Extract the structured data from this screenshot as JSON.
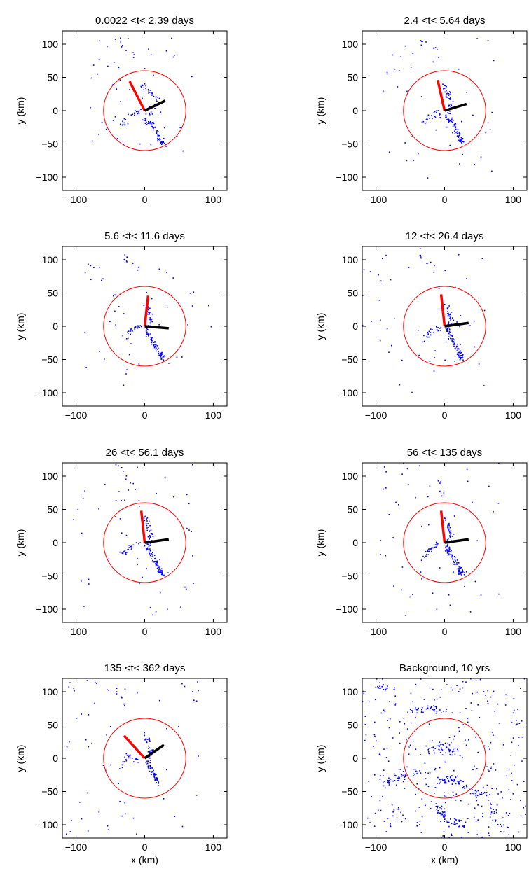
{
  "figure": {
    "shared_xlabel": "x (km)",
    "shared_ylabel": "y (km)"
  },
  "chart_data": [
    {
      "type": "scatter",
      "title": "0.0022 <t< 2.39 days",
      "xlabel": "",
      "ylabel": "y (km)",
      "xlim": [
        -120,
        120
      ],
      "ylim": [
        -120,
        120
      ],
      "xticks": [
        -100,
        0,
        100
      ],
      "yticks": [
        -100,
        -50,
        0,
        50,
        100
      ],
      "circle": {
        "cx": 0,
        "cy": 0,
        "r": 60,
        "color": "#ff0000"
      },
      "red_line": [
        [
          0,
          0
        ],
        [
          -22,
          44
        ]
      ],
      "black_line": [
        [
          0,
          0
        ],
        [
          30,
          15
        ]
      ],
      "clusters": [
        {
          "pts": [
            [
              -5,
              38
            ],
            [
              20,
              18
            ],
            [
              0,
              -15
            ],
            [
              12,
              -22
            ],
            [
              22,
              -42
            ],
            [
              28,
              -50
            ]
          ],
          "spread": 3.5,
          "n": 22
        },
        {
          "pts": [
            [
              -32,
              -22
            ],
            [
              -20,
              -8
            ],
            [
              -6,
              0
            ]
          ],
          "spread": 4,
          "n": 12
        },
        {
          "pts": [
            [
              -40,
              112
            ],
            [
              -30,
              92
            ],
            [
              -15,
              82
            ]
          ],
          "spread": 3,
          "n": 4
        }
      ],
      "scatter_n": 45,
      "scatter_box": [
        -80,
        80,
        -80,
        110
      ]
    },
    {
      "type": "scatter",
      "title": "2.4 <t< 5.64 days",
      "xlabel": "",
      "ylabel": "y (km)",
      "xlim": [
        -120,
        120
      ],
      "ylim": [
        -120,
        120
      ],
      "xticks": [
        -100,
        0,
        100
      ],
      "yticks": [
        -100,
        -50,
        0,
        50,
        100
      ],
      "circle": {
        "cx": 0,
        "cy": 0,
        "r": 60,
        "color": "#ff0000"
      },
      "red_line": [
        [
          0,
          0
        ],
        [
          -10,
          46
        ]
      ],
      "black_line": [
        [
          0,
          0
        ],
        [
          32,
          10
        ]
      ],
      "clusters": [
        {
          "pts": [
            [
              -2,
              38
            ],
            [
              10,
              15
            ],
            [
              4,
              -10
            ],
            [
              14,
              -22
            ],
            [
              22,
              -42
            ],
            [
              26,
              -48
            ]
          ],
          "spread": 3.5,
          "n": 22
        },
        {
          "pts": [
            [
              -32,
              -20
            ],
            [
              -22,
              -10
            ],
            [
              -8,
              -2
            ]
          ],
          "spread": 4,
          "n": 12
        },
        {
          "pts": [
            [
              -35,
              108
            ],
            [
              -25,
              98
            ],
            [
              -8,
              90
            ]
          ],
          "spread": 3,
          "n": 4
        }
      ],
      "scatter_n": 45,
      "scatter_box": [
        -100,
        80,
        -110,
        110
      ]
    },
    {
      "type": "scatter",
      "title": "5.6 <t< 11.6 days",
      "xlabel": "",
      "ylabel": "y (km)",
      "xlim": [
        -120,
        120
      ],
      "ylim": [
        -120,
        120
      ],
      "xticks": [
        -100,
        0,
        100
      ],
      "yticks": [
        -100,
        -50,
        0,
        50,
        100
      ],
      "circle": {
        "cx": 0,
        "cy": 0,
        "r": 60,
        "color": "#ff0000"
      },
      "red_line": [
        [
          0,
          0
        ],
        [
          5,
          46
        ]
      ],
      "black_line": [
        [
          0,
          0
        ],
        [
          35,
          -3
        ]
      ],
      "clusters": [
        {
          "pts": [
            [
              0,
              35
            ],
            [
              10,
              12
            ],
            [
              4,
              -10
            ],
            [
              14,
              -25
            ],
            [
              22,
              -42
            ],
            [
              26,
              -48
            ]
          ],
          "spread": 3.5,
          "n": 22
        },
        {
          "pts": [
            [
              -30,
              -18
            ],
            [
              -20,
              -5
            ],
            [
              -8,
              0
            ]
          ],
          "spread": 4,
          "n": 12
        },
        {
          "pts": [
            [
              -30,
              110
            ],
            [
              -25,
              98
            ],
            [
              -10,
              90
            ]
          ],
          "spread": 3,
          "n": 4
        }
      ],
      "scatter_n": 45,
      "scatter_box": [
        -90,
        100,
        -90,
        110
      ]
    },
    {
      "type": "scatter",
      "title": "12 <t< 26.4 days",
      "xlabel": "",
      "ylabel": "y (km)",
      "xlim": [
        -120,
        120
      ],
      "ylim": [
        -120,
        120
      ],
      "xticks": [
        -100,
        0,
        100
      ],
      "yticks": [
        -100,
        -50,
        0,
        50,
        100
      ],
      "circle": {
        "cx": 0,
        "cy": 0,
        "r": 60,
        "color": "#ff0000"
      },
      "red_line": [
        [
          0,
          0
        ],
        [
          -5,
          48
        ]
      ],
      "black_line": [
        [
          0,
          0
        ],
        [
          35,
          5
        ]
      ],
      "clusters": [
        {
          "pts": [
            [
              0,
              35
            ],
            [
              10,
              12
            ],
            [
              4,
              -10
            ],
            [
              14,
              -25
            ],
            [
              22,
              -42
            ],
            [
              26,
              -48
            ]
          ],
          "spread": 3.5,
          "n": 22
        },
        {
          "pts": [
            [
              -30,
              -20
            ],
            [
              -20,
              -8
            ],
            [
              -8,
              -2
            ]
          ],
          "spread": 4,
          "n": 12
        },
        {
          "pts": [
            [
              -40,
              115
            ],
            [
              -30,
              100
            ],
            [
              -15,
              88
            ]
          ],
          "spread": 3,
          "n": 4
        }
      ],
      "scatter_n": 50,
      "scatter_box": [
        -120,
        60,
        -100,
        120
      ]
    },
    {
      "type": "scatter",
      "title": "26 <t< 56.1 days",
      "xlabel": "",
      "ylabel": "y (km)",
      "xlim": [
        -120,
        120
      ],
      "ylim": [
        -120,
        120
      ],
      "xticks": [
        -100,
        0,
        100
      ],
      "yticks": [
        -100,
        -50,
        0,
        50,
        100
      ],
      "circle": {
        "cx": 0,
        "cy": 0,
        "r": 60,
        "color": "#ff0000"
      },
      "red_line": [
        [
          0,
          0
        ],
        [
          -5,
          48
        ]
      ],
      "black_line": [
        [
          0,
          0
        ],
        [
          35,
          5
        ]
      ],
      "clusters": [
        {
          "pts": [
            [
              0,
              38
            ],
            [
              10,
              12
            ],
            [
              4,
              -10
            ],
            [
              14,
              -25
            ],
            [
              22,
              -42
            ],
            [
              26,
              -48
            ]
          ],
          "spread": 3.5,
          "n": 22
        },
        {
          "pts": [
            [
              -35,
              -20
            ],
            [
              -22,
              -8
            ],
            [
              -8,
              0
            ]
          ],
          "spread": 4,
          "n": 12
        },
        {
          "pts": [
            [
              -40,
              120
            ],
            [
              -30,
              100
            ],
            [
              -15,
              88
            ]
          ],
          "spread": 3,
          "n": 4
        }
      ],
      "scatter_n": 55,
      "scatter_box": [
        -110,
        80,
        -110,
        120
      ]
    },
    {
      "type": "scatter",
      "title": "56 <t< 135 days",
      "xlabel": "",
      "ylabel": "y (km)",
      "xlim": [
        -120,
        120
      ],
      "ylim": [
        -120,
        120
      ],
      "xticks": [
        -100,
        0,
        100
      ],
      "yticks": [
        -100,
        -50,
        0,
        50,
        100
      ],
      "circle": {
        "cx": 0,
        "cy": 0,
        "r": 60,
        "color": "#ff0000"
      },
      "red_line": [
        [
          0,
          0
        ],
        [
          -5,
          48
        ]
      ],
      "black_line": [
        [
          0,
          0
        ],
        [
          35,
          5
        ]
      ],
      "clusters": [
        {
          "pts": [
            [
              0,
              38
            ],
            [
              10,
              12
            ],
            [
              4,
              -10
            ],
            [
              14,
              -25
            ],
            [
              22,
              -42
            ],
            [
              26,
              -48
            ]
          ],
          "spread": 3.5,
          "n": 22
        },
        {
          "pts": [
            [
              -30,
              -20
            ],
            [
              -20,
              -8
            ],
            [
              -8,
              0
            ]
          ],
          "spread": 4,
          "n": 12
        },
        {
          "pts": [
            [
              -10,
              95
            ],
            [
              -5,
              80
            ],
            [
              -2,
              72
            ]
          ],
          "spread": 3,
          "n": 4
        }
      ],
      "scatter_n": 55,
      "scatter_box": [
        -110,
        80,
        -110,
        120
      ]
    },
    {
      "type": "scatter",
      "title": "135 <t< 362 days",
      "xlabel": "x (km)",
      "ylabel": "y (km)",
      "xlim": [
        -120,
        120
      ],
      "ylim": [
        -120,
        120
      ],
      "xticks": [
        -100,
        0,
        100
      ],
      "yticks": [
        -100,
        -50,
        0,
        50,
        100
      ],
      "circle": {
        "cx": 0,
        "cy": 0,
        "r": 60,
        "color": "#ff0000"
      },
      "red_line": [
        [
          0,
          0
        ],
        [
          -30,
          34
        ]
      ],
      "black_line": [
        [
          0,
          0
        ],
        [
          28,
          20
        ]
      ],
      "clusters": [
        {
          "pts": [
            [
              0,
              38
            ],
            [
              10,
              12
            ],
            [
              4,
              -10
            ],
            [
              14,
              -25
            ],
            [
              20,
              -38
            ]
          ],
          "spread": 3.5,
          "n": 20
        },
        {
          "pts": [
            [
              -35,
              -20
            ],
            [
              -25,
              5
            ],
            [
              -10,
              -5
            ]
          ],
          "spread": 4,
          "n": 12
        },
        {
          "pts": [
            [
              -70,
              110
            ],
            [
              -40,
              98
            ],
            [
              -25,
              80
            ]
          ],
          "spread": 3,
          "n": 4
        }
      ],
      "scatter_n": 60,
      "scatter_box": [
        -115,
        80,
        -120,
        120
      ]
    },
    {
      "type": "scatter",
      "title": "Background, 10 yrs",
      "xlabel": "x (km)",
      "ylabel": "y (km)",
      "xlim": [
        -120,
        120
      ],
      "ylim": [
        -120,
        120
      ],
      "xticks": [
        -100,
        0,
        100
      ],
      "yticks": [
        -100,
        -50,
        0,
        50,
        100
      ],
      "circle": {
        "cx": 0,
        "cy": 0,
        "r": 60,
        "color": "#ff0000"
      },
      "red_line": null,
      "black_line": null,
      "clusters": [
        {
          "pts": [
            [
              -10,
              -35
            ],
            [
              10,
              -30
            ],
            [
              30,
              -45
            ]
          ],
          "spread": 5,
          "n": 30
        },
        {
          "pts": [
            [
              -60,
              -20
            ],
            [
              -90,
              -40
            ],
            [
              -30,
              -15
            ]
          ],
          "spread": 5,
          "n": 25
        },
        {
          "pts": [
            [
              -10,
              -70
            ],
            [
              0,
              -90
            ],
            [
              30,
              -100
            ]
          ],
          "spread": 5,
          "n": 25
        },
        {
          "pts": [
            [
              40,
              -50
            ],
            [
              60,
              -55
            ],
            [
              85,
              -110
            ]
          ],
          "spread": 5,
          "n": 20
        },
        {
          "pts": [
            [
              -50,
              70
            ],
            [
              -20,
              75
            ],
            [
              0,
              72
            ]
          ],
          "spread": 5,
          "n": 18
        },
        {
          "pts": [
            [
              -100,
              110
            ],
            [
              -60,
              100
            ]
          ],
          "spread": 5,
          "n": 14
        },
        {
          "pts": [
            [
              -20,
              10
            ],
            [
              0,
              20
            ],
            [
              20,
              5
            ]
          ],
          "spread": 6,
          "n": 22
        }
      ],
      "scatter_n": 320,
      "scatter_box": [
        -120,
        120,
        -120,
        120
      ]
    }
  ],
  "colors": {
    "points": "#0000ff",
    "circle": "#ff0000",
    "red_line": "#ff0000",
    "black_line": "#000000",
    "axes": "#000000"
  }
}
